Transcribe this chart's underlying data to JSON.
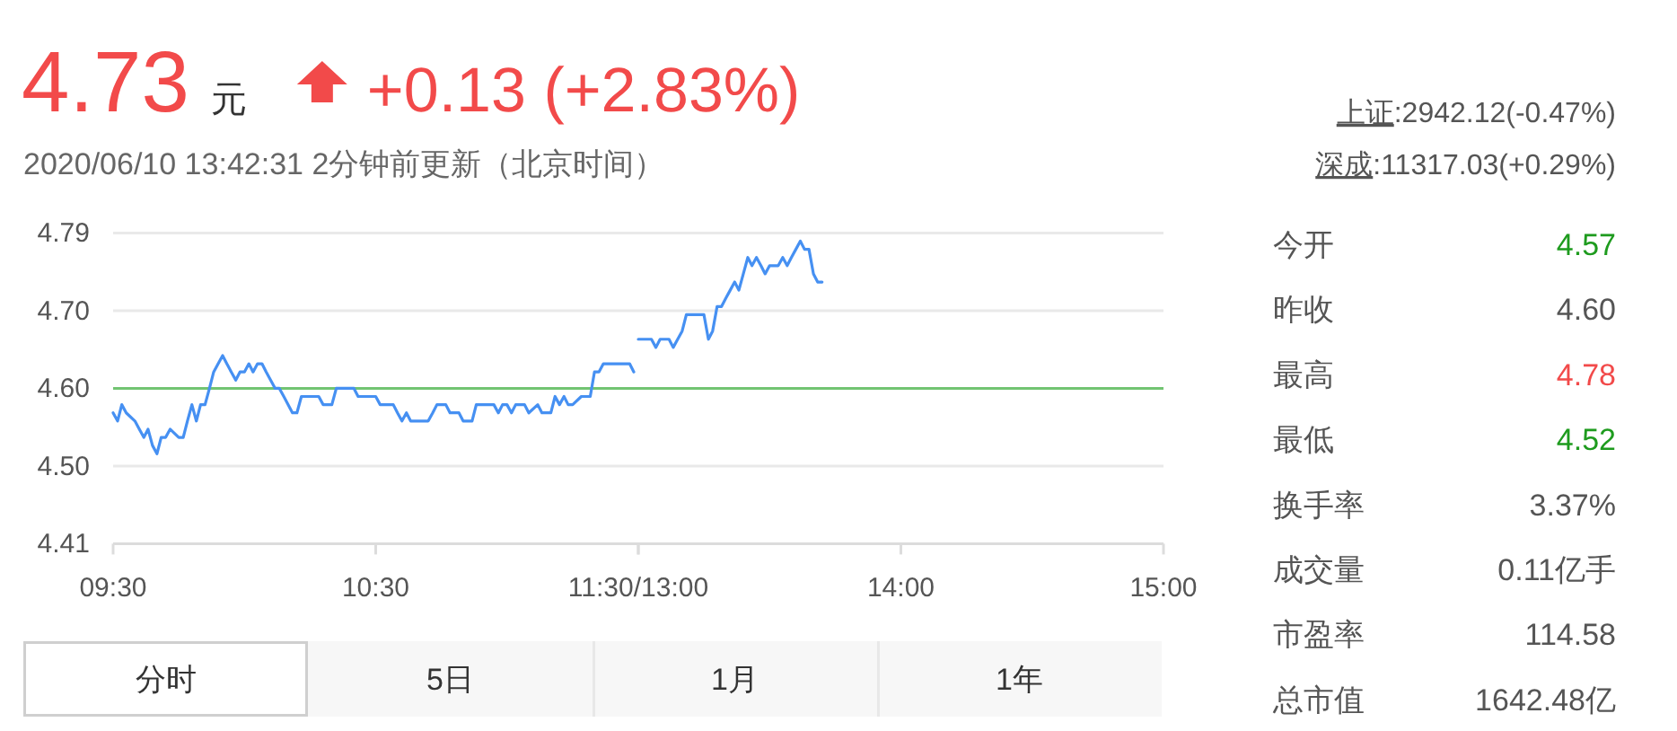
{
  "chart_data": [
    {
      "type": "other",
      "title": "4.73",
      "annotations": [
        "元",
        "+0.13 (+2.83%)"
      ],
      "subtitle": "2020/06/10 13:42:31  2分钟前更新（北京时间）",
      "color": "#f24a4a"
    },
    {
      "type": "other",
      "annotations": [
        "上证:2942.12(-0.47%)",
        "深成:11317.03(+0.29%)"
      ]
    },
    {
      "type": "line",
      "color": "#4690f2",
      "x": [
        9.5,
        9.517,
        9.533,
        9.55,
        9.583,
        9.6,
        9.617,
        9.633,
        9.65,
        9.667,
        9.683,
        9.7,
        9.717,
        9.75,
        9.767,
        9.783,
        9.8,
        9.817,
        9.833,
        9.85,
        9.867,
        9.883,
        9.9,
        9.917,
        9.933,
        9.95,
        9.967,
        9.983,
        10,
        10.017,
        10.033,
        10.05,
        10.067,
        10.083,
        10.117,
        10.133,
        10.15,
        10.183,
        10.2,
        10.217,
        10.283,
        10.3,
        10.333,
        10.35,
        10.417,
        10.433,
        10.5,
        10.517,
        10.567,
        10.583,
        10.6,
        10.617,
        10.633,
        10.7,
        10.717,
        10.733,
        10.767,
        10.783,
        10.817,
        10.833,
        10.867,
        10.883,
        10.95,
        10.967,
        10.983,
        11,
        11.017,
        11.033,
        11.067,
        11.083,
        11.117,
        11.133,
        11.167,
        11.183,
        11.2,
        11.217,
        11.233,
        11.25,
        11.283,
        11.317,
        11.333,
        11.35,
        11.367,
        11.467,
        11.483
      ],
      "values": [
        4.57,
        4.56,
        4.58,
        4.57,
        4.56,
        4.55,
        4.54,
        4.55,
        4.53,
        4.52,
        4.54,
        4.54,
        4.55,
        4.54,
        4.54,
        4.56,
        4.58,
        4.56,
        4.58,
        4.58,
        4.6,
        4.62,
        4.63,
        4.64,
        4.63,
        4.62,
        4.61,
        4.62,
        4.62,
        4.63,
        4.62,
        4.63,
        4.63,
        4.62,
        4.6,
        4.6,
        4.59,
        4.57,
        4.57,
        4.59,
        4.59,
        4.58,
        4.58,
        4.6,
        4.6,
        4.59,
        4.59,
        4.58,
        4.58,
        4.57,
        4.56,
        4.57,
        4.56,
        4.56,
        4.57,
        4.58,
        4.58,
        4.57,
        4.57,
        4.56,
        4.56,
        4.58,
        4.58,
        4.57,
        4.58,
        4.58,
        4.57,
        4.58,
        4.58,
        4.57,
        4.58,
        4.57,
        4.57,
        4.59,
        4.58,
        4.59,
        4.58,
        4.58,
        4.59,
        4.59,
        4.62,
        4.62,
        4.63,
        4.63,
        4.62
      ],
      "xlim": [
        9.5,
        11.5
      ],
      "xticks": [
        {
          "value": 9.5,
          "label": "09:30"
        },
        {
          "value": 10.5,
          "label": "10:30"
        },
        {
          "value": 11.5,
          "label": "11:30/13:00"
        }
      ],
      "ylim": [
        4.41,
        4.79
      ],
      "yticks": [
        4.41,
        {
          "value": 4.505,
          "label": "4.50"
        },
        {
          "value": 4.6,
          "label": "4.60"
        },
        {
          "value": 4.695,
          "label": "4.70"
        },
        4.79
      ],
      "ref_lines": [
        {
          "axis": "y",
          "value": 4.6,
          "color": "#72c472"
        }
      ],
      "grid": "y"
    },
    {
      "type": "line",
      "color": "#4690f2",
      "x": [
        13,
        13.05,
        13.067,
        13.083,
        13.117,
        13.133,
        13.15,
        13.167,
        13.183,
        13.25,
        13.267,
        13.283,
        13.3,
        13.317,
        13.333,
        13.35,
        13.367,
        13.383,
        13.4,
        13.417,
        13.433,
        13.45,
        13.467,
        13.483,
        13.5,
        13.533,
        13.55,
        13.567,
        13.583,
        13.6,
        13.617,
        13.633,
        13.65,
        13.667,
        13.683,
        13.7
      ],
      "values": [
        4.66,
        4.66,
        4.65,
        4.66,
        4.66,
        4.65,
        4.66,
        4.67,
        4.69,
        4.69,
        4.66,
        4.67,
        4.7,
        4.7,
        4.71,
        4.72,
        4.73,
        4.72,
        4.74,
        4.76,
        4.75,
        4.76,
        4.75,
        4.74,
        4.75,
        4.75,
        4.76,
        4.75,
        4.76,
        4.77,
        4.78,
        4.77,
        4.77,
        4.74,
        4.73,
        4.73
      ],
      "xlim": [
        13,
        15
      ],
      "xticks": [
        {
          "value": 13,
          "label": null
        },
        {
          "value": 14,
          "label": "14:00"
        },
        {
          "value": 15,
          "label": "15:00"
        }
      ],
      "ylim": [
        4.41,
        4.79
      ],
      "yticks": [
        4.41,
        4.505,
        4.6,
        4.695,
        4.79
      ],
      "tick_labels": "x",
      "ref_lines": [
        {
          "axis": "y",
          "value": 4.6,
          "color": "#72c472"
        }
      ],
      "grid": "y"
    },
    {
      "type": "other",
      "categories": [
        "今开",
        "昨收",
        "最高",
        "最低",
        "换手率",
        "成交量",
        "市盈率",
        "总市值"
      ],
      "value_labels": [
        "4.57",
        "4.60",
        "4.78",
        "4.52",
        "3.37%",
        "0.11亿手",
        "114.58",
        "1642.48亿"
      ],
      "colors": [
        "#1e9b1e",
        "#555555",
        "#f24a4a",
        "#1e9b1e",
        "#555555",
        "#555555",
        "#555555",
        "#555555"
      ]
    },
    {
      "type": "other",
      "categories": [
        "分时",
        "5日",
        "1月",
        "1年"
      ]
    }
  ]
}
